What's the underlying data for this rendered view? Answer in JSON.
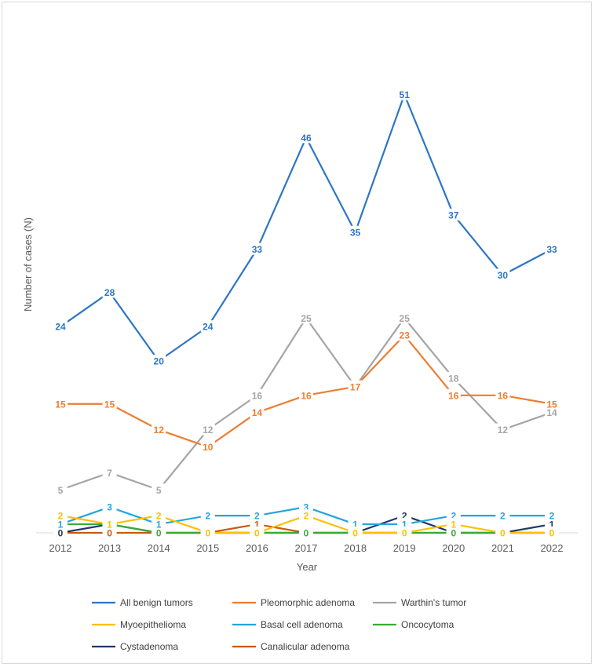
{
  "chart_data": {
    "type": "line",
    "title": "",
    "xlabel": "Year",
    "ylabel": "Number of cases (N)",
    "ylim": [
      0,
      55
    ],
    "grid": false,
    "legend_position": "bottom",
    "categories": [
      "2012",
      "2013",
      "2014",
      "2015",
      "2016",
      "2017",
      "2018",
      "2019",
      "2020",
      "2021",
      "2022"
    ],
    "series": [
      {
        "name": "All benign tumors",
        "color": "#2E75C6",
        "values": [
          24,
          28,
          20,
          24,
          33,
          46,
          35,
          51,
          37,
          30,
          33
        ]
      },
      {
        "name": "Pleomorphic adenoma",
        "color": "#ED7D31",
        "values": [
          15,
          15,
          12,
          10,
          14,
          16,
          17,
          23,
          16,
          16,
          15
        ]
      },
      {
        "name": "Warthin's tumor",
        "color": "#A5A5A5",
        "values": [
          5,
          7,
          5,
          12,
          16,
          25,
          17,
          25,
          18,
          12,
          14
        ]
      },
      {
        "name": "Myoepithelioma",
        "color": "#FFC000",
        "values": [
          2,
          1,
          2,
          0,
          0,
          2,
          0,
          0,
          1,
          0,
          0
        ]
      },
      {
        "name": "Basal cell adenoma",
        "color": "#23A5DE",
        "values": [
          1,
          3,
          1,
          2,
          2,
          3,
          1,
          1,
          2,
          2,
          2
        ]
      },
      {
        "name": "Oncocytoma",
        "color": "#3BAA35",
        "values": [
          1,
          1,
          0,
          0,
          0,
          0,
          0,
          0,
          0,
          0,
          0
        ]
      },
      {
        "name": "Cystadenoma",
        "color": "#1F3864",
        "values": [
          0,
          1,
          0,
          0,
          0,
          0,
          0,
          2,
          0,
          0,
          1
        ]
      },
      {
        "name": "Canalicular adenoma",
        "color": "#C55A11",
        "values": [
          0,
          0,
          0,
          0,
          1,
          0,
          0,
          0,
          0,
          0,
          0
        ]
      }
    ]
  }
}
